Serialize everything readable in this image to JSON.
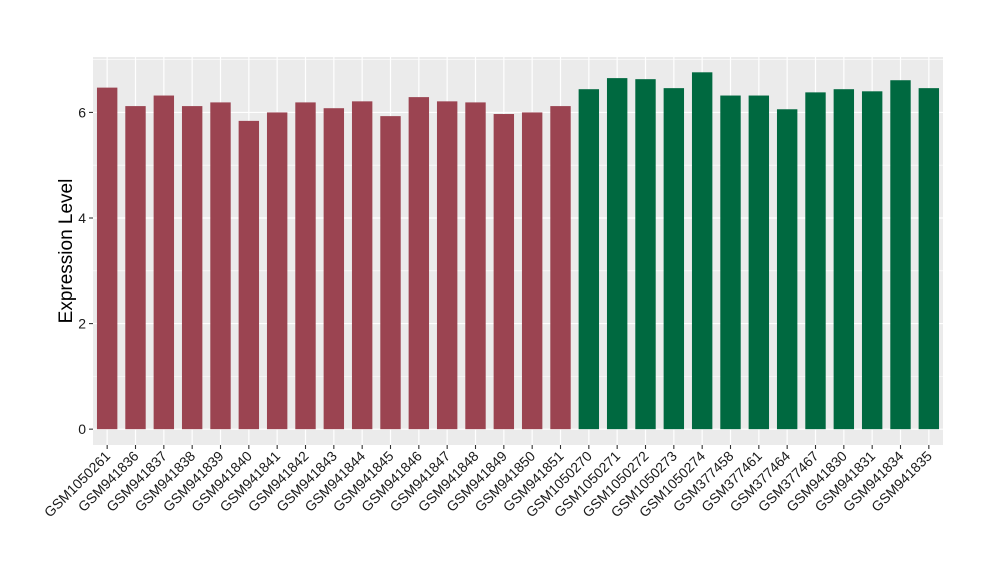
{
  "chart_data": {
    "type": "bar",
    "title": "",
    "xlabel": "",
    "ylabel": "Expression Level",
    "ylim": [
      -0.3,
      7.05
    ],
    "yticks": [
      0,
      2,
      4,
      6
    ],
    "grid": true,
    "legend": "none",
    "panel_background": "#ebebeb",
    "grid_color": "#ffffff",
    "categories": [
      "GSM1050261",
      "GSM941836",
      "GSM941837",
      "GSM941838",
      "GSM941839",
      "GSM941840",
      "GSM941841",
      "GSM941842",
      "GSM941843",
      "GSM941844",
      "GSM941845",
      "GSM941846",
      "GSM941847",
      "GSM941848",
      "GSM941849",
      "GSM941850",
      "GSM941851",
      "GSM1050270",
      "GSM1050271",
      "GSM1050272",
      "GSM1050273",
      "GSM1050274",
      "GSM377458",
      "GSM377461",
      "GSM377464",
      "GSM377467",
      "GSM941830",
      "GSM941831",
      "GSM941834",
      "GSM941835"
    ],
    "values": [
      6.47,
      6.12,
      6.32,
      6.12,
      6.19,
      5.84,
      6.0,
      6.19,
      6.08,
      6.21,
      5.93,
      6.29,
      6.21,
      6.19,
      5.97,
      6.0,
      6.12,
      6.44,
      6.65,
      6.63,
      6.46,
      6.76,
      6.32,
      6.32,
      6.06,
      6.38,
      6.44,
      6.4,
      6.61,
      6.46
    ],
    "colors": [
      "#9b4451",
      "#9b4451",
      "#9b4451",
      "#9b4451",
      "#9b4451",
      "#9b4451",
      "#9b4451",
      "#9b4451",
      "#9b4451",
      "#9b4451",
      "#9b4451",
      "#9b4451",
      "#9b4451",
      "#9b4451",
      "#9b4451",
      "#9b4451",
      "#9b4451",
      "#006940",
      "#006940",
      "#006940",
      "#006940",
      "#006940",
      "#006940",
      "#006940",
      "#006940",
      "#006940",
      "#006940",
      "#006940",
      "#006940",
      "#006940"
    ]
  }
}
